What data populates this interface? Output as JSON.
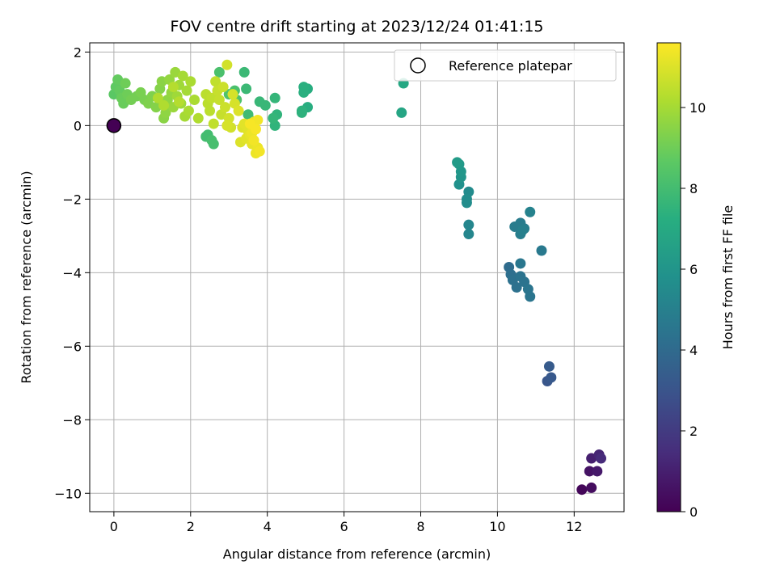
{
  "chart_data": {
    "type": "scatter",
    "title": "FOV centre drift starting at 2023/12/24 01:41:15",
    "xlabel": "Angular distance from reference (arcmin)",
    "ylabel": "Rotation from reference (arcmin)",
    "xlim": [
      -0.63,
      13.3
    ],
    "ylim": [
      -10.5,
      2.25
    ],
    "xticks": [
      0,
      2,
      4,
      6,
      8,
      10,
      12
    ],
    "yticks": [
      -10,
      -8,
      -6,
      -4,
      -2,
      0,
      2
    ],
    "x_tick_labels": [
      "0",
      "2",
      "4",
      "6",
      "8",
      "10",
      "12"
    ],
    "y_tick_labels": [
      "−10",
      "−8",
      "−6",
      "−4",
      "−2",
      "0",
      "2"
    ],
    "grid": true,
    "legend": {
      "placement": "top-right",
      "entries": [
        "Reference platepar"
      ]
    },
    "colorbar": {
      "label": "Hours from first FF file",
      "colormap": "viridis",
      "range": [
        0,
        11.6
      ],
      "ticks": [
        0,
        2,
        4,
        6,
        8,
        10
      ],
      "tick_labels": [
        "0",
        "2",
        "4",
        "6",
        "8",
        "10"
      ]
    },
    "reference_point": {
      "x": 0,
      "y": 0,
      "h": 0
    },
    "points": [
      {
        "x": 12.2,
        "y": -9.9,
        "h": 0.2
      },
      {
        "x": 12.45,
        "y": -9.85,
        "h": 0.4
      },
      {
        "x": 12.4,
        "y": -9.4,
        "h": 0.6
      },
      {
        "x": 12.6,
        "y": -9.4,
        "h": 0.8
      },
      {
        "x": 12.45,
        "y": -9.05,
        "h": 1.0
      },
      {
        "x": 12.65,
        "y": -8.95,
        "h": 1.2
      },
      {
        "x": 12.7,
        "y": -9.05,
        "h": 1.4
      },
      {
        "x": 11.3,
        "y": -6.95,
        "h": 3.1
      },
      {
        "x": 11.4,
        "y": -6.85,
        "h": 3.2
      },
      {
        "x": 11.35,
        "y": -6.55,
        "h": 3.3
      },
      {
        "x": 10.3,
        "y": -3.85,
        "h": 4.1
      },
      {
        "x": 10.35,
        "y": -4.05,
        "h": 4.2
      },
      {
        "x": 10.4,
        "y": -4.2,
        "h": 4.3
      },
      {
        "x": 10.5,
        "y": -4.4,
        "h": 4.3
      },
      {
        "x": 10.6,
        "y": -4.1,
        "h": 4.4
      },
      {
        "x": 10.7,
        "y": -4.25,
        "h": 4.4
      },
      {
        "x": 10.8,
        "y": -4.45,
        "h": 4.5
      },
      {
        "x": 10.85,
        "y": -4.65,
        "h": 4.5
      },
      {
        "x": 10.6,
        "y": -3.75,
        "h": 4.6
      },
      {
        "x": 11.15,
        "y": -3.4,
        "h": 4.7
      },
      {
        "x": 10.45,
        "y": -2.75,
        "h": 4.8
      },
      {
        "x": 10.6,
        "y": -2.65,
        "h": 4.8
      },
      {
        "x": 10.6,
        "y": -2.95,
        "h": 4.9
      },
      {
        "x": 10.7,
        "y": -2.8,
        "h": 4.9
      },
      {
        "x": 10.65,
        "y": -2.85,
        "h": 5.0
      },
      {
        "x": 10.85,
        "y": -2.35,
        "h": 5.1
      },
      {
        "x": 9.25,
        "y": -2.7,
        "h": 5.3
      },
      {
        "x": 9.25,
        "y": -2.95,
        "h": 5.3
      },
      {
        "x": 9.25,
        "y": -1.8,
        "h": 5.5
      },
      {
        "x": 9.2,
        "y": -2.0,
        "h": 5.6
      },
      {
        "x": 9.2,
        "y": -2.1,
        "h": 5.6
      },
      {
        "x": 9.0,
        "y": -1.6,
        "h": 5.8
      },
      {
        "x": 9.05,
        "y": -1.4,
        "h": 6.0
      },
      {
        "x": 9.05,
        "y": -1.25,
        "h": 6.1
      },
      {
        "x": 9.0,
        "y": -1.05,
        "h": 6.2
      },
      {
        "x": 8.95,
        "y": -1.0,
        "h": 6.3
      },
      {
        "x": 7.5,
        "y": 0.35,
        "h": 6.8
      },
      {
        "x": 7.55,
        "y": 1.15,
        "h": 6.9
      },
      {
        "x": 5.05,
        "y": 1.0,
        "h": 7.2
      },
      {
        "x": 5.05,
        "y": 0.5,
        "h": 7.2
      },
      {
        "x": 4.95,
        "y": 1.05,
        "h": 7.3
      },
      {
        "x": 4.95,
        "y": 0.9,
        "h": 7.3
      },
      {
        "x": 4.9,
        "y": 0.35,
        "h": 7.4
      },
      {
        "x": 4.9,
        "y": 0.4,
        "h": 7.4
      },
      {
        "x": 4.25,
        "y": 0.3,
        "h": 7.5
      },
      {
        "x": 4.2,
        "y": 0.0,
        "h": 7.5
      },
      {
        "x": 4.2,
        "y": 0.75,
        "h": 7.6
      },
      {
        "x": 4.15,
        "y": 0.2,
        "h": 7.6
      },
      {
        "x": 3.95,
        "y": 0.55,
        "h": 7.7
      },
      {
        "x": 3.8,
        "y": 0.65,
        "h": 7.7
      },
      {
        "x": 3.4,
        "y": 1.45,
        "h": 7.8
      },
      {
        "x": 3.45,
        "y": 1.0,
        "h": 7.8
      },
      {
        "x": 3.5,
        "y": 0.3,
        "h": 7.9
      },
      {
        "x": 3.55,
        "y": 0.15,
        "h": 7.9
      },
      {
        "x": 2.45,
        "y": -0.25,
        "h": 8.0
      },
      {
        "x": 2.4,
        "y": -0.3,
        "h": 8.0
      },
      {
        "x": 2.55,
        "y": -0.4,
        "h": 8.1
      },
      {
        "x": 2.6,
        "y": -0.5,
        "h": 8.1
      },
      {
        "x": 2.75,
        "y": 1.45,
        "h": 8.2
      },
      {
        "x": 3.15,
        "y": 0.95,
        "h": 8.2
      },
      {
        "x": 3.0,
        "y": 0.85,
        "h": 8.3
      },
      {
        "x": 3.2,
        "y": 0.7,
        "h": 8.3
      },
      {
        "x": 0.0,
        "y": 0.85,
        "h": 8.6
      },
      {
        "x": 0.05,
        "y": 1.05,
        "h": 8.7
      },
      {
        "x": 0.1,
        "y": 1.25,
        "h": 8.8
      },
      {
        "x": 0.15,
        "y": 0.95,
        "h": 8.8
      },
      {
        "x": 0.2,
        "y": 0.75,
        "h": 8.9
      },
      {
        "x": 0.25,
        "y": 0.6,
        "h": 8.9
      },
      {
        "x": 0.3,
        "y": 1.15,
        "h": 9.0
      },
      {
        "x": 0.35,
        "y": 0.85,
        "h": 9.0
      },
      {
        "x": 0.45,
        "y": 0.7,
        "h": 9.1
      },
      {
        "x": 0.6,
        "y": 0.8,
        "h": 9.1
      },
      {
        "x": 0.7,
        "y": 0.9,
        "h": 9.2
      },
      {
        "x": 0.8,
        "y": 0.7,
        "h": 9.2
      },
      {
        "x": 0.9,
        "y": 0.6,
        "h": 9.3
      },
      {
        "x": 1.0,
        "y": 0.8,
        "h": 9.3
      },
      {
        "x": 1.1,
        "y": 0.5,
        "h": 9.4
      },
      {
        "x": 1.2,
        "y": 1.0,
        "h": 9.4
      },
      {
        "x": 1.25,
        "y": 1.2,
        "h": 9.5
      },
      {
        "x": 1.3,
        "y": 0.2,
        "h": 9.5
      },
      {
        "x": 1.35,
        "y": 0.35,
        "h": 9.6
      },
      {
        "x": 1.4,
        "y": 0.7,
        "h": 9.6
      },
      {
        "x": 1.45,
        "y": 1.25,
        "h": 9.7
      },
      {
        "x": 1.5,
        "y": 0.9,
        "h": 9.7
      },
      {
        "x": 1.55,
        "y": 0.5,
        "h": 9.8
      },
      {
        "x": 1.6,
        "y": 1.45,
        "h": 9.8
      },
      {
        "x": 1.65,
        "y": 0.8,
        "h": 9.9
      },
      {
        "x": 1.7,
        "y": 1.1,
        "h": 9.9
      },
      {
        "x": 1.75,
        "y": 0.6,
        "h": 9.9
      },
      {
        "x": 1.8,
        "y": 1.35,
        "h": 10.0
      },
      {
        "x": 1.85,
        "y": 0.25,
        "h": 10.0
      },
      {
        "x": 1.9,
        "y": 0.95,
        "h": 10.0
      },
      {
        "x": 1.95,
        "y": 0.4,
        "h": 10.1
      },
      {
        "x": 2.0,
        "y": 1.2,
        "h": 10.1
      },
      {
        "x": 2.1,
        "y": 0.7,
        "h": 10.1
      },
      {
        "x": 2.2,
        "y": 0.2,
        "h": 10.2
      },
      {
        "x": 1.15,
        "y": 0.75,
        "h": 10.2
      },
      {
        "x": 1.3,
        "y": 0.55,
        "h": 10.2
      },
      {
        "x": 1.55,
        "y": 1.05,
        "h": 10.3
      },
      {
        "x": 1.7,
        "y": 0.65,
        "h": 10.3
      },
      {
        "x": 2.4,
        "y": 0.85,
        "h": 10.4
      },
      {
        "x": 2.45,
        "y": 0.6,
        "h": 10.4
      },
      {
        "x": 2.5,
        "y": 0.4,
        "h": 10.4
      },
      {
        "x": 2.55,
        "y": 0.75,
        "h": 10.5
      },
      {
        "x": 2.6,
        "y": 0.05,
        "h": 10.5
      },
      {
        "x": 2.65,
        "y": 1.2,
        "h": 10.5
      },
      {
        "x": 2.7,
        "y": 0.95,
        "h": 10.6
      },
      {
        "x": 2.75,
        "y": 0.7,
        "h": 10.6
      },
      {
        "x": 2.8,
        "y": 0.3,
        "h": 10.6
      },
      {
        "x": 2.85,
        "y": 1.05,
        "h": 10.7
      },
      {
        "x": 2.9,
        "y": 0.5,
        "h": 10.7
      },
      {
        "x": 2.95,
        "y": 1.65,
        "h": 10.8
      },
      {
        "x": 3.0,
        "y": 0.2,
        "h": 10.8
      },
      {
        "x": 3.05,
        "y": -0.05,
        "h": 10.8
      },
      {
        "x": 2.95,
        "y": 0.0,
        "h": 10.9
      },
      {
        "x": 3.1,
        "y": 0.85,
        "h": 10.9
      },
      {
        "x": 3.15,
        "y": 0.6,
        "h": 10.9
      },
      {
        "x": 3.25,
        "y": 0.4,
        "h": 11.0
      },
      {
        "x": 3.3,
        "y": -0.45,
        "h": 11.0
      },
      {
        "x": 3.35,
        "y": -0.05,
        "h": 11.0
      },
      {
        "x": 3.4,
        "y": 0.05,
        "h": 11.1
      },
      {
        "x": 3.45,
        "y": -0.35,
        "h": 11.1
      },
      {
        "x": 3.5,
        "y": -0.15,
        "h": 11.1
      },
      {
        "x": 3.55,
        "y": -0.25,
        "h": 11.2
      },
      {
        "x": 3.6,
        "y": -0.5,
        "h": 11.2
      },
      {
        "x": 3.65,
        "y": 0.1,
        "h": 11.2
      },
      {
        "x": 3.7,
        "y": -0.75,
        "h": 11.3
      },
      {
        "x": 3.75,
        "y": -0.6,
        "h": 11.3
      },
      {
        "x": 3.6,
        "y": -0.2,
        "h": 11.3
      },
      {
        "x": 3.8,
        "y": -0.7,
        "h": 11.4
      },
      {
        "x": 3.65,
        "y": -0.4,
        "h": 11.4
      },
      {
        "x": 3.75,
        "y": 0.15,
        "h": 11.4
      },
      {
        "x": 3.7,
        "y": -0.1,
        "h": 11.5
      },
      {
        "x": 3.55,
        "y": 0.05,
        "h": 11.5
      }
    ]
  }
}
